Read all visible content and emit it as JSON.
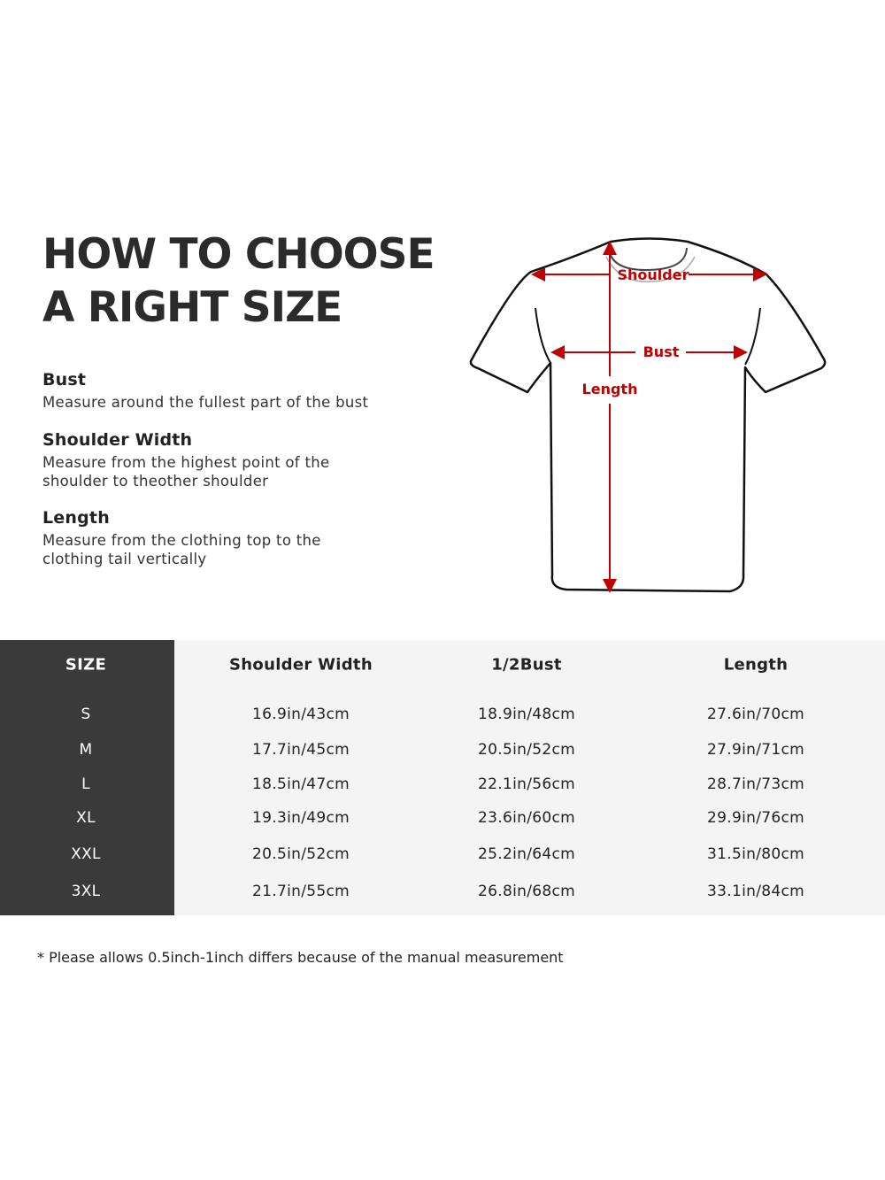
{
  "title": {
    "line1": "HOW TO CHOOSE",
    "line2": "A RIGHT SIZE"
  },
  "measurements": [
    {
      "name": "Bust",
      "description": "Measure around the fullest part of the bust"
    },
    {
      "name": "Shoulder Width",
      "description": "Measure from the highest point of the shoulder to theother shoulder"
    },
    {
      "name": "Length",
      "description": "Measure from the clothing top to the clothing tail vertically"
    }
  ],
  "diagram": {
    "labels": {
      "shoulder": "Shoulder",
      "bust": "Bust",
      "length": "Length"
    },
    "arrow_color": "#c00000"
  },
  "table": {
    "headers": [
      "SIZE",
      "Shoulder Width",
      "1/2Bust",
      "Length"
    ],
    "rows": [
      [
        "S",
        "16.9in/43cm",
        "18.9in/48cm",
        "27.6in/70cm"
      ],
      [
        "M",
        "17.7in/45cm",
        "20.5in/52cm",
        "27.9in/71cm"
      ],
      [
        "L",
        "18.5in/47cm",
        "22.1in/56cm",
        "28.7in/73cm"
      ],
      [
        "XL",
        "19.3in/49cm",
        "23.6in/60cm",
        "29.9in/76cm"
      ],
      [
        "XXL",
        "20.5in/52cm",
        "25.2in/64cm",
        "31.5in/80cm"
      ],
      [
        "3XL",
        "21.7in/55cm",
        "26.8in/68cm",
        "33.1in/84cm"
      ]
    ],
    "size_column_color": "#3a3a3a",
    "body_color": "#f4f4f4"
  },
  "note": "* Please allows 0.5inch-1inch differs because of the  manual measurement"
}
